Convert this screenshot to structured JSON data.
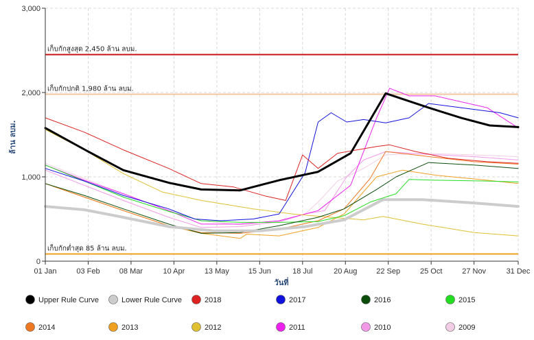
{
  "chart_data": {
    "type": "line",
    "xlabel": "วันที่",
    "ylabel": "ล้าน ลบม.",
    "ylim": [
      0,
      3000
    ],
    "y_ticks": [
      "0",
      "1,000",
      "2,000",
      "3,000"
    ],
    "x_ticks": [
      "01 Jan",
      "03 Feb",
      "08 Mar",
      "10 Apr",
      "13 May",
      "15 Jun",
      "18 Jul",
      "20 Aug",
      "22 Sep",
      "25 Oct",
      "27 Nov",
      "31 Dec"
    ],
    "x_tick_days": [
      0,
      33,
      66,
      99,
      132,
      165,
      198,
      231,
      264,
      297,
      330,
      364
    ],
    "x_range_days": [
      0,
      364
    ],
    "grid": true,
    "legend_position": "bottom",
    "reference_lines": [
      {
        "label": "เก็บกักสูงสุด 2,450 ล้าน ลบม.",
        "value": 2450,
        "color": "#cc1111"
      },
      {
        "label": "เก็บกักปกติ 1,980 ล้าน ลบม.",
        "value": 1980,
        "color": "#f2c6a0"
      },
      {
        "label": "เก็บกักต่ำสุด 85 ล้าน ลบม.",
        "value": 85,
        "color": "#f0a020"
      }
    ],
    "series": [
      {
        "name": "Upper Rule Curve",
        "color": "#000000",
        "width": 3,
        "days": [
          0,
          33,
          60,
          95,
          120,
          150,
          180,
          210,
          235,
          262,
          295,
          320,
          342,
          364
        ],
        "values": [
          1580,
          1300,
          1080,
          930,
          850,
          840,
          960,
          1060,
          1280,
          1990,
          1820,
          1700,
          1610,
          1590
        ]
      },
      {
        "name": "Lower Rule Curve",
        "color": "#cccccc",
        "width": 4,
        "days": [
          0,
          30,
          60,
          95,
          130,
          165,
          200,
          230,
          260,
          290,
          330,
          364
        ],
        "values": [
          650,
          610,
          520,
          410,
          360,
          360,
          410,
          490,
          730,
          730,
          690,
          650
        ]
      },
      {
        "name": "2018",
        "color": "#dd2222",
        "width": 1,
        "days": [
          0,
          30,
          60,
          95,
          120,
          145,
          170,
          185,
          198,
          210,
          225,
          240,
          255,
          265,
          285,
          310,
          340,
          364
        ],
        "values": [
          1700,
          1530,
          1320,
          1100,
          920,
          880,
          770,
          720,
          1260,
          1100,
          1280,
          1320,
          1360,
          1380,
          1300,
          1220,
          1180,
          1160
        ]
      },
      {
        "name": "2017",
        "color": "#1111dd",
        "width": 1,
        "days": [
          0,
          30,
          60,
          95,
          115,
          135,
          160,
          180,
          200,
          210,
          220,
          232,
          245,
          262,
          280,
          295,
          320,
          350,
          364
        ],
        "values": [
          1100,
          950,
          780,
          620,
          500,
          480,
          500,
          560,
          1050,
          1650,
          1760,
          1650,
          1680,
          1640,
          1700,
          1870,
          1820,
          1760,
          1700
        ]
      },
      {
        "name": "2016",
        "color": "#0a4d0a",
        "width": 1,
        "days": [
          0,
          30,
          60,
          95,
          120,
          150,
          180,
          210,
          230,
          255,
          270,
          295,
          330,
          364
        ],
        "values": [
          920,
          780,
          620,
          440,
          330,
          340,
          420,
          520,
          620,
          850,
          1000,
          1170,
          1140,
          1100
        ]
      },
      {
        "name": "2015",
        "color": "#22dd22",
        "width": 1,
        "days": [
          0,
          30,
          60,
          95,
          120,
          150,
          180,
          210,
          230,
          250,
          262,
          270,
          280,
          300,
          340,
          364
        ],
        "values": [
          1140,
          950,
          760,
          590,
          480,
          460,
          460,
          470,
          540,
          700,
          760,
          800,
          970,
          960,
          950,
          940
        ]
      },
      {
        "name": "2014",
        "color": "#ee7722",
        "width": 1,
        "days": [
          0,
          30,
          60,
          95,
          120,
          150,
          180,
          210,
          230,
          250,
          262,
          290,
          330,
          364
        ],
        "values": [
          920,
          760,
          600,
          420,
          340,
          330,
          380,
          480,
          620,
          980,
          1300,
          1250,
          1180,
          1150
        ]
      },
      {
        "name": "2013",
        "color": "#f0a020",
        "width": 1,
        "days": [
          0,
          30,
          60,
          95,
          120,
          150,
          155,
          180,
          210,
          230,
          255,
          275,
          300,
          340,
          364
        ],
        "values": [
          920,
          760,
          600,
          420,
          330,
          270,
          320,
          300,
          400,
          560,
          1000,
          1080,
          1020,
          960,
          920
        ]
      },
      {
        "name": "2012",
        "color": "#e0c030",
        "width": 1,
        "days": [
          0,
          30,
          60,
          90,
          120,
          160,
          190,
          220,
          245,
          260,
          290,
          330,
          364
        ],
        "values": [
          1560,
          1320,
          1040,
          820,
          720,
          620,
          560,
          520,
          490,
          530,
          440,
          340,
          300
        ]
      },
      {
        "name": "2011",
        "color": "#ee22ee",
        "width": 1,
        "days": [
          0,
          30,
          60,
          95,
          120,
          150,
          180,
          210,
          235,
          255,
          265,
          280,
          300,
          340,
          364
        ],
        "values": [
          1140,
          960,
          800,
          600,
          440,
          440,
          480,
          600,
          900,
          1700,
          2050,
          1960,
          1960,
          1820,
          1580
        ]
      },
      {
        "name": "2010",
        "color": "#f29ae8",
        "width": 1,
        "days": [
          0,
          30,
          60,
          95,
          120,
          150,
          180,
          200,
          215,
          232,
          245,
          262,
          290,
          330,
          364
        ],
        "values": [
          1080,
          900,
          720,
          520,
          400,
          410,
          470,
          560,
          600,
          1000,
          1200,
          1300,
          1270,
          1240,
          1200
        ]
      },
      {
        "name": "2009",
        "color": "#f2cde6",
        "width": 1,
        "days": [
          0,
          30,
          60,
          95,
          120,
          150,
          180,
          200,
          210,
          225,
          245,
          262,
          290,
          330,
          364
        ],
        "values": [
          1160,
          980,
          800,
          600,
          480,
          430,
          460,
          560,
          700,
          950,
          1100,
          1260,
          1280,
          1260,
          1240
        ]
      }
    ]
  }
}
